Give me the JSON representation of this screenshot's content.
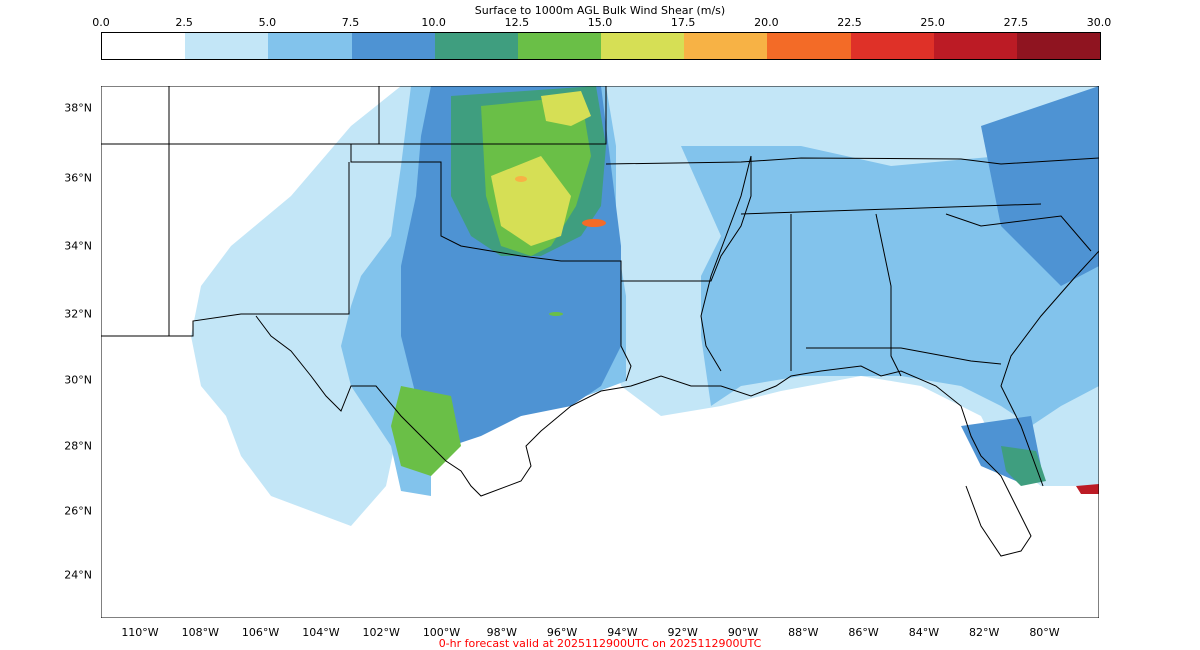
{
  "colorbar": {
    "title": "Surface to 1000m AGL Bulk Wind Shear (m/s)",
    "ticks": [
      "0.0",
      "2.5",
      "5.0",
      "7.5",
      "10.0",
      "12.5",
      "15.0",
      "17.5",
      "20.0",
      "22.5",
      "25.0",
      "27.5",
      "30.0"
    ],
    "colors": [
      "#ffffff",
      "#c3e6f7",
      "#82c3ec",
      "#4e93d3",
      "#3f9e7f",
      "#6abf47",
      "#d6df55",
      "#f7b245",
      "#f36b27",
      "#df3128",
      "#bc1b25",
      "#8f1420"
    ]
  },
  "lat_labels": [
    "38°N",
    "36°N",
    "34°N",
    "32°N",
    "30°N",
    "28°N",
    "26°N",
    "24°N"
  ],
  "lon_labels": [
    "110°W",
    "108°W",
    "106°W",
    "104°W",
    "102°W",
    "100°W",
    "98°W",
    "96°W",
    "94°W",
    "92°W",
    "90°W",
    "88°W",
    "86°W",
    "84°W",
    "82°W",
    "80°W"
  ],
  "footer": "0-hr forecast valid at 2025112900UTC on 2025112900UTC"
}
